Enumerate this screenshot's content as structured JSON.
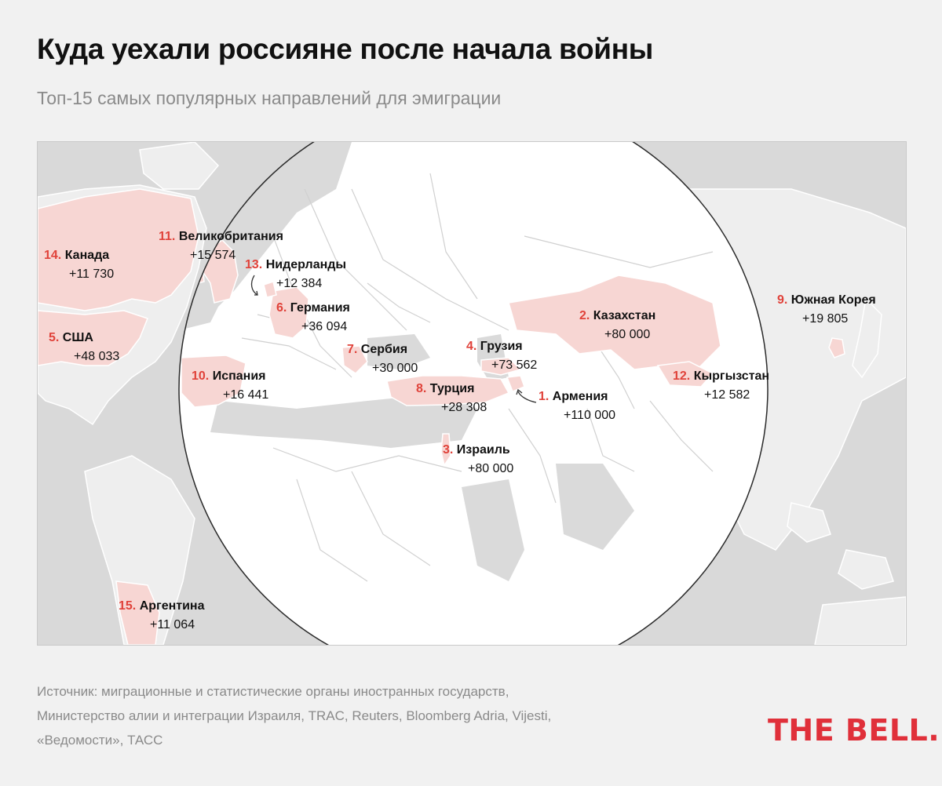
{
  "title": "Куда уехали россияне после начала войны",
  "subtitle": "Топ-15 самых популярных направлений для эмиграции",
  "destinations": [
    {
      "rank": "1.",
      "country": "Армения",
      "value": "+110 000"
    },
    {
      "rank": "2.",
      "country": "Казахстан",
      "value": "+80 000"
    },
    {
      "rank": "3.",
      "country": "Израиль",
      "value": "+80 000"
    },
    {
      "rank": "4.",
      "country": "Грузия",
      "value": "+73 562"
    },
    {
      "rank": "5.",
      "country": "США",
      "value": "+48 033"
    },
    {
      "rank": "6.",
      "country": "Германия",
      "value": "+36 094"
    },
    {
      "rank": "7.",
      "country": "Сербия",
      "value": "+30 000"
    },
    {
      "rank": "8.",
      "country": "Турция",
      "value": "+28 308"
    },
    {
      "rank": "9.",
      "country": "Южная Корея",
      "value": "+19 805"
    },
    {
      "rank": "10.",
      "country": "Испания",
      "value": "+16 441"
    },
    {
      "rank": "11.",
      "country": "Великобритания",
      "value": "+15 574"
    },
    {
      "rank": "12.",
      "country": "Кыргызстан",
      "value": "+12 582"
    },
    {
      "rank": "13.",
      "country": "Нидерланды",
      "value": "+12 384"
    },
    {
      "rank": "14.",
      "country": "Канада",
      "value": "+11 730"
    },
    {
      "rank": "15.",
      "country": "Аргентина",
      "value": "+11 064"
    }
  ],
  "source": {
    "line1": "Источник: миграционные и статистические органы иностранных государств,",
    "line2": "Министерство алии и интеграции Израиля, TRAC, Reuters, Bloomberg Adria, Vijesti,",
    "line3": "«Ведомости», ТАСС"
  },
  "logo": "THE BELL.",
  "colors": {
    "accent": "#e0423a",
    "highlight": "#f7d6d3",
    "land": "#ffffff",
    "background_land": "#d9d9d9"
  }
}
